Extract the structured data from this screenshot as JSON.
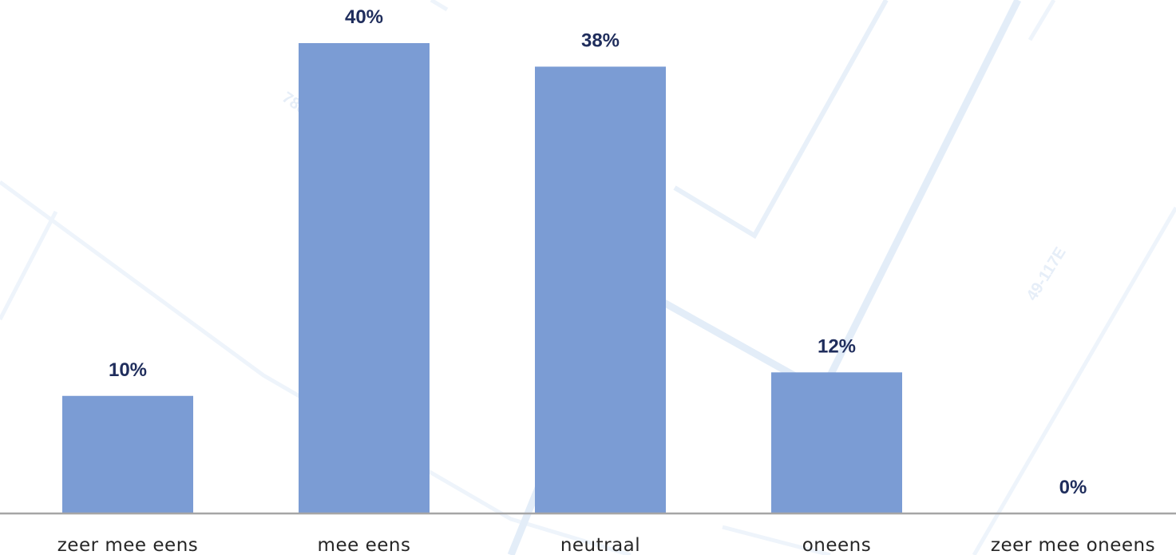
{
  "chart_data": {
    "type": "bar",
    "categories": [
      "zeer mee eens",
      "mee eens",
      "neutraal",
      "oneens",
      "zeer mee oneens"
    ],
    "values": [
      10,
      40,
      38,
      12,
      0
    ],
    "value_labels": [
      "10%",
      "40%",
      "38%",
      "12%",
      "0%"
    ],
    "title": "",
    "xlabel": "",
    "ylabel": "",
    "ylim": [
      0,
      40
    ],
    "grid": false,
    "legend": "none",
    "bar_color": "#7b9cd4",
    "label_color": "#1f2d5c"
  },
  "watermark": {
    "texts": [
      "7882",
      "49-117E"
    ]
  }
}
